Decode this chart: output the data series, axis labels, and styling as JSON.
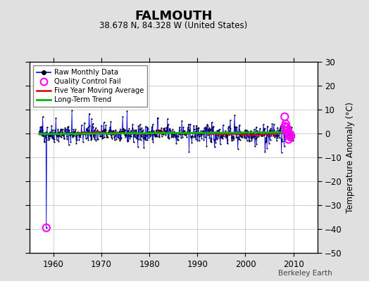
{
  "title": "FALMOUTH",
  "subtitle": "38.678 N, 84.328 W (United States)",
  "ylabel": "Temperature Anomaly (°C)",
  "credit": "Berkeley Earth",
  "xlim": [
    1955,
    2015
  ],
  "ylim": [
    -50,
    30
  ],
  "yticks": [
    -50,
    -40,
    -30,
    -20,
    -10,
    0,
    10,
    20,
    30
  ],
  "xticks": [
    1960,
    1970,
    1980,
    1990,
    2000,
    2010
  ],
  "background_color": "#e0e0e0",
  "plot_bg_color": "#ffffff",
  "grid_color": "#bbbbbb",
  "raw_line_color": "#0000dd",
  "raw_dot_color": "#000000",
  "moving_avg_color": "#dd0000",
  "trend_color": "#00bb00",
  "qc_fail_color": "#ff00ff",
  "seed": 42,
  "start_year": 1957.0,
  "end_year": 2010.0,
  "outlier_year": 1958.5,
  "outlier_val": -39.5,
  "qc_cluster_x": [
    2008.2,
    2008.4,
    2008.6,
    2008.8,
    2009.0,
    2009.2,
    2009.4,
    2009.0,
    2008.5,
    2009.5,
    2008.3,
    2009.1
  ],
  "qc_cluster_y": [
    7.0,
    4.0,
    2.5,
    1.5,
    0.5,
    -0.5,
    -1.5,
    -2.5,
    1.0,
    -1.0,
    3.0,
    -0.8
  ]
}
